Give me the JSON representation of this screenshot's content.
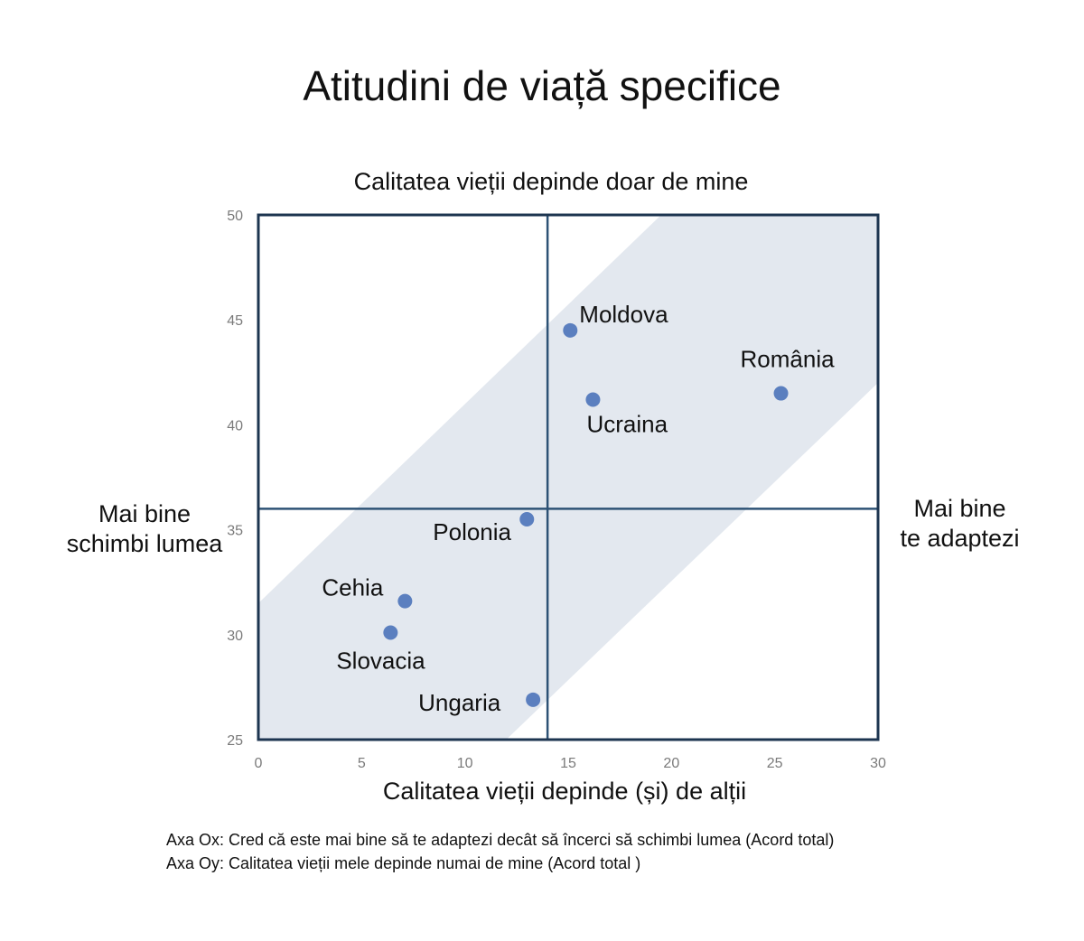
{
  "title": "Atitudini de viață specifice",
  "quadrant_labels": {
    "top": "Calitatea vieții depinde doar de mine",
    "bottom": "Calitatea vieții depinde (și) de alții",
    "left": [
      "Mai bine",
      "schimbi lumea"
    ],
    "right": [
      "Mai bine",
      "te adaptezi"
    ]
  },
  "notes": [
    "Axa Ox: Cred că este mai bine să te adaptezi decât să încerci să schimbi lumea (Acord total)",
    "Axa Oy: Calitatea vieții mele depinde numai de mine (Acord total )"
  ],
  "colors": {
    "point": "#5b7fbf",
    "frame": "#1d3550",
    "divider": "#2d5275",
    "band": "#e3e8ef",
    "tick_text": "#7a7a7a"
  },
  "chart_data": {
    "type": "scatter",
    "title": "Atitudini de viață specifice",
    "xlabel": "Calitatea vieții depinde (și) de alții",
    "ylabel": "",
    "xlim": [
      0,
      30
    ],
    "ylim": [
      25,
      50
    ],
    "xticks": [
      0,
      5,
      10,
      15,
      20,
      25,
      30
    ],
    "yticks": [
      25,
      30,
      35,
      40,
      45,
      50
    ],
    "dividers": {
      "x": 14,
      "y": 36
    },
    "band": {
      "lower_edge": [
        [
          12,
          25
        ],
        [
          30,
          42
        ]
      ],
      "upper_edge": [
        [
          0,
          31.5
        ],
        [
          19.5,
          50
        ]
      ]
    },
    "points": [
      {
        "label": "Moldova",
        "x": 15.1,
        "y": 44.5,
        "label_pos": "above-right"
      },
      {
        "label": "România",
        "x": 25.3,
        "y": 41.5,
        "label_pos": "above"
      },
      {
        "label": "Ucraina",
        "x": 16.2,
        "y": 41.2,
        "label_pos": "below-right"
      },
      {
        "label": "Polonia",
        "x": 13.0,
        "y": 35.5,
        "label_pos": "below-left"
      },
      {
        "label": "Cehia",
        "x": 7.1,
        "y": 31.6,
        "label_pos": "above-left"
      },
      {
        "label": "Slovacia",
        "x": 6.4,
        "y": 30.1,
        "label_pos": "below"
      },
      {
        "label": "Ungaria",
        "x": 13.3,
        "y": 26.9,
        "label_pos": "left"
      }
    ],
    "grid": false,
    "legend": "none"
  }
}
